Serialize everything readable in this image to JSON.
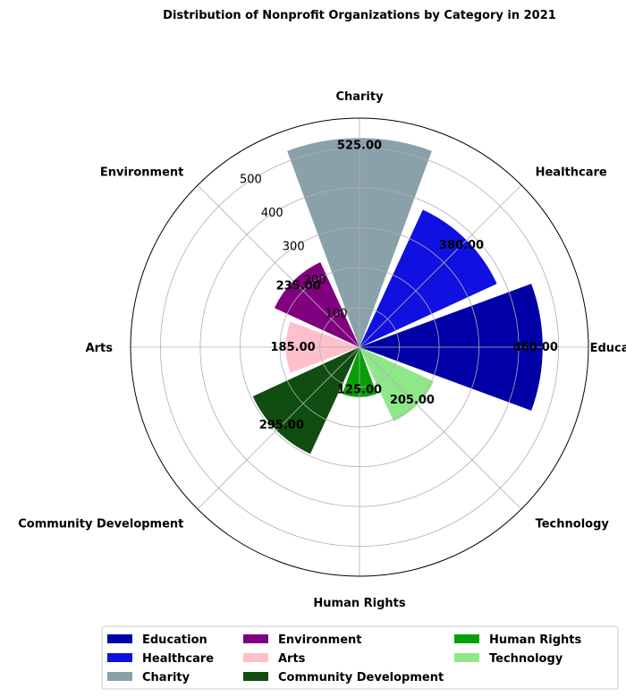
{
  "chart_data": {
    "type": "polar-bar",
    "title": "Distribution of Nonprofit Organizations by Category in 2021",
    "categories": [
      "Education",
      "Healthcare",
      "Charity",
      "Environment",
      "Arts",
      "Community Development",
      "Human Rights",
      "Technology"
    ],
    "values": [
      460,
      380,
      525,
      235,
      185,
      295,
      125,
      205
    ],
    "value_labels": [
      "460.00",
      "380.00",
      "525.00",
      "235.00",
      "185.00",
      "295.00",
      "125.00",
      "205.00"
    ],
    "colors": [
      "#0000a6",
      "#1010e0",
      "#8aa1aa",
      "#800080",
      "#ffbfcb",
      "#0f4d10",
      "#06a006",
      "#8ee88a"
    ],
    "radial_ticks": [
      100,
      200,
      300,
      400,
      500
    ],
    "rmax": 575,
    "grid": true,
    "legend": "bottom, 3 columns"
  }
}
